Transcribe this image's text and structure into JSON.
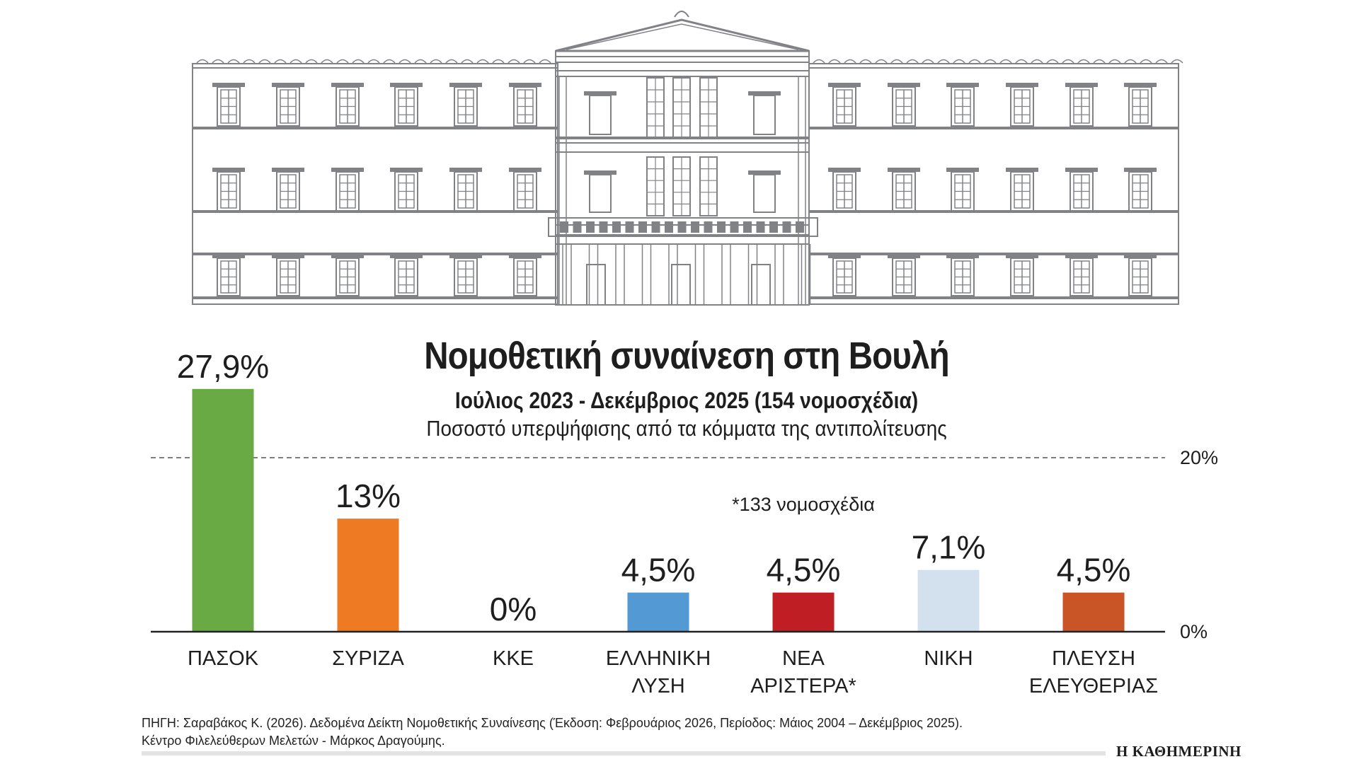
{
  "header": {
    "title": "Νομοθετική συναίνεση στη Βουλή",
    "subtitle": "Ιούλιος 2023 - Δεκέμβριος 2025 (154 νομοσχέδια)",
    "description": "Ποσοστό υπερψήφισης από τα κόμματα της αντιπολίτευσης"
  },
  "chart_data": {
    "type": "bar",
    "categories": [
      "ΠΑΣΟΚ",
      "ΣΥΡΙΖΑ",
      "ΚΚΕ",
      "ΕΛΛΗΝΙΚΗ ΛΥΣΗ",
      "ΝΕΑ ΑΡΙΣΤΕΡΑ*",
      "ΝΙΚΗ",
      "ΠΛΕΥΣΗ ΕΛΕΥΘΕΡΙΑΣ"
    ],
    "category_lines": [
      [
        "ΠΑΣΟΚ"
      ],
      [
        "ΣΥΡΙΖΑ"
      ],
      [
        "ΚΚΕ"
      ],
      [
        "ΕΛΛΗΝΙΚΗ",
        "ΛΥΣΗ"
      ],
      [
        "ΝΕΑ",
        "ΑΡΙΣΤΕΡΑ*"
      ],
      [
        "ΝΙΚΗ"
      ],
      [
        "ΠΛΕΥΣΗ",
        "ΕΛΕΥΘΕΡΙΑΣ"
      ]
    ],
    "values": [
      27.9,
      13,
      0,
      4.5,
      4.5,
      7.1,
      4.5
    ],
    "data_labels": [
      "27,9%",
      "13%",
      "0%",
      "4,5%",
      "4,5%",
      "7,1%",
      "4,5%"
    ],
    "colors": [
      "#6aaa44",
      "#ee7a24",
      "#999999",
      "#5399d4",
      "#bf1e24",
      "#d3e1ef",
      "#c95527"
    ],
    "yticks": [
      {
        "value": 0,
        "label": "0%"
      },
      {
        "value": 20,
        "label": "20%"
      }
    ],
    "reference_line": {
      "value": 20,
      "style": "dashed"
    },
    "annotation": "*133 νομοσχέδια",
    "ylim": [
      0,
      27.9
    ],
    "grid": false,
    "title": "Νομοθετική συναίνεση στη Βουλή"
  },
  "footer": {
    "source_line1": "ΠΗΓΗ: Σαραβάκος Κ. (2026). Δεδομένα Δείκτη Νομοθετικής Συναίνεσης (Έκδοση: Φεβρουάριος 2026, Περίοδος: Μάιος 2004 – Δεκέμβριος 2025).",
    "source_line2": "Κέντρο Φιλελεύθερων Μελετών - Μάρκος Δραγούμης.",
    "logo": "Η ΚΑΘΗΜΕΡΙΝΗ"
  },
  "colors": {
    "building_line": "#808285",
    "text": "#1e1e1e"
  }
}
